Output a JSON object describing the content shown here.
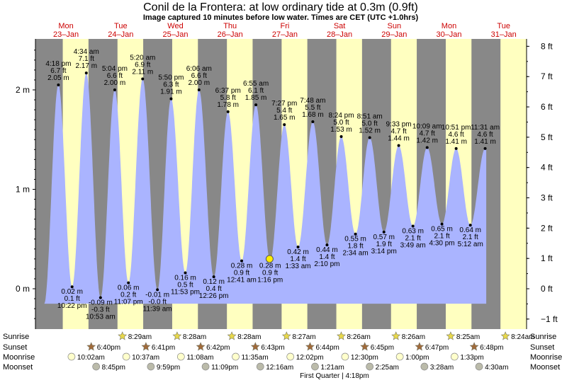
{
  "header": {
    "title": "Conil de la Frontera: at low  ordinary tide at 0.3m (0.9ft)",
    "subtitle": "Image captured 10 minutes before low water. Times are CET (UTC +1.0hrs)"
  },
  "days": [
    {
      "dow": "Mon",
      "date": "23–Jan"
    },
    {
      "dow": "Tue",
      "date": "24–Jan"
    },
    {
      "dow": "Wed",
      "date": "25–Jan"
    },
    {
      "dow": "Thu",
      "date": "26–Jan"
    },
    {
      "dow": "Fri",
      "date": "27–Jan"
    },
    {
      "dow": "Sat",
      "date": "28–Jan"
    },
    {
      "dow": "Sun",
      "date": "29–Jan"
    },
    {
      "dow": "Mon",
      "date": "30–Jan"
    },
    {
      "dow": "Tue",
      "date": "31–Jan"
    }
  ],
  "chart_data": {
    "type": "area",
    "title": "Conil de la Frontera: at low  ordinary tide at 0.3m (0.9ft)",
    "xlabel": "",
    "ylabel_left": "m",
    "ylabel_right": "ft",
    "ylim_m": [
      -0.32,
      2.48
    ],
    "left_ticks": [
      "2 m",
      "1 m",
      "0 m"
    ],
    "left_tick_values": [
      2,
      1,
      0
    ],
    "right_ticks": [
      "8 ft",
      "7 ft",
      "6 ft",
      "5 ft",
      "4 ft",
      "3 ft",
      "2 ft",
      "1 ft",
      "0 ft",
      "−1 ft"
    ],
    "right_tick_values": [
      8,
      7,
      6,
      5,
      4,
      3,
      2,
      1,
      0,
      -1
    ],
    "night_bands": [
      [
        -0.27,
        0.26
      ],
      [
        0.73,
        1.26
      ],
      [
        1.73,
        2.26
      ],
      [
        2.73,
        3.26
      ],
      [
        3.73,
        4.26
      ],
      [
        4.73,
        5.26
      ],
      [
        5.73,
        6.26
      ],
      [
        6.73,
        7.26
      ],
      [
        7.73,
        8.26
      ]
    ],
    "extremes": [
      {
        "t": 0.18,
        "h": 2.05,
        "type": "high",
        "time": "4:18 pm",
        "ft": "6.7 ft",
        "m": "2.05 m"
      },
      {
        "t": 0.43,
        "h": 0.02,
        "type": "low",
        "time": "10:22 pm",
        "ft": "0.1 ft",
        "m": "0.02 m"
      },
      {
        "t": 0.69,
        "h": 2.17,
        "type": "high",
        "time": "4:34 am",
        "ft": "7.1 ft",
        "m": "2.17 m"
      },
      {
        "t": 0.95,
        "h": -0.09,
        "type": "low",
        "time": "10:53 am",
        "ft": "-0.3 ft",
        "m": "-0.09 m"
      },
      {
        "t": 1.21,
        "h": 2.0,
        "type": "high",
        "time": "5:04 pm",
        "ft": "6.6 ft",
        "m": "2.00 m"
      },
      {
        "t": 1.46,
        "h": 0.06,
        "type": "low",
        "time": "11:07 pm",
        "ft": "0.2 ft",
        "m": "0.06 m"
      },
      {
        "t": 1.72,
        "h": 2.11,
        "type": "high",
        "time": "5:20 am",
        "ft": "6.9 ft",
        "m": "2.11 m"
      },
      {
        "t": 1.99,
        "h": -0.01,
        "type": "low",
        "time": "11:39 am",
        "ft": "-0.0 ft",
        "m": "-0.01 m"
      },
      {
        "t": 2.24,
        "h": 1.91,
        "type": "high",
        "time": "5:50 pm",
        "ft": "6.3 ft",
        "m": "1.91 m"
      },
      {
        "t": 2.5,
        "h": 0.16,
        "type": "low",
        "time": "11:53 pm",
        "ft": "0.5 ft",
        "m": "0.16 m"
      },
      {
        "t": 2.75,
        "h": 2.0,
        "type": "high",
        "time": "6:06 am",
        "ft": "6.6 ft",
        "m": "2.00 m"
      },
      {
        "t": 3.02,
        "h": 0.12,
        "type": "low",
        "time": "12:26 pm",
        "ft": "0.4 ft",
        "m": "0.12 m"
      },
      {
        "t": 3.28,
        "h": 1.78,
        "type": "high",
        "time": "6:37 pm",
        "ft": "5.8 ft",
        "m": "1.78 m"
      },
      {
        "t": 3.53,
        "h": 0.28,
        "type": "low",
        "time": "12:41 am",
        "ft": "0.9 ft",
        "m": "0.28 m"
      },
      {
        "t": 3.79,
        "h": 1.85,
        "type": "high",
        "time": "6:55 am",
        "ft": "6.1 ft",
        "m": "1.85 m"
      },
      {
        "t": 4.05,
        "h": 0.28,
        "type": "low",
        "time": "1:16 pm",
        "ft": "0.9 ft",
        "m": "0.28 m"
      },
      {
        "t": 4.31,
        "h": 1.65,
        "type": "high",
        "time": "7:27 pm",
        "ft": "5.4 ft",
        "m": "1.65 m"
      },
      {
        "t": 4.56,
        "h": 0.42,
        "type": "low",
        "time": "1:33 am",
        "ft": "1.4 ft",
        "m": "0.42 m"
      },
      {
        "t": 4.83,
        "h": 1.68,
        "type": "high",
        "time": "7:48 am",
        "ft": "5.5 ft",
        "m": "1.68 m"
      },
      {
        "t": 5.09,
        "h": 0.44,
        "type": "low",
        "time": "2:10 pm",
        "ft": "1.4 ft",
        "m": "0.44 m"
      },
      {
        "t": 5.35,
        "h": 1.53,
        "type": "high",
        "time": "8:24 pm",
        "ft": "5.0 ft",
        "m": "1.53 m"
      },
      {
        "t": 5.61,
        "h": 0.55,
        "type": "low",
        "time": "2:34 am",
        "ft": "1.8 ft",
        "m": "0.55 m"
      },
      {
        "t": 5.87,
        "h": 1.52,
        "type": "high",
        "time": "8:51 am",
        "ft": "5.0 ft",
        "m": "1.52 m"
      },
      {
        "t": 6.13,
        "h": 0.57,
        "type": "low",
        "time": "3:14 pm",
        "ft": "1.9 ft",
        "m": "0.57 m"
      },
      {
        "t": 6.4,
        "h": 1.44,
        "type": "high",
        "time": "9:33 pm",
        "ft": "4.7 ft",
        "m": "1.44 m"
      },
      {
        "t": 6.66,
        "h": 0.63,
        "type": "low",
        "time": "3:49 am",
        "ft": "2.1 ft",
        "m": "0.63 m"
      },
      {
        "t": 6.92,
        "h": 1.42,
        "type": "high",
        "time": "10:09 am",
        "ft": "4.7 ft",
        "m": "1.42 m"
      },
      {
        "t": 7.19,
        "h": 0.65,
        "type": "low",
        "time": "4:30 pm",
        "ft": "2.1 ft",
        "m": "0.65 m"
      },
      {
        "t": 7.45,
        "h": 1.41,
        "type": "high",
        "time": "10:51 pm",
        "ft": "4.6 ft",
        "m": "1.41 m"
      },
      {
        "t": 7.71,
        "h": 0.64,
        "type": "low",
        "time": "5:12 am",
        "ft": "2.1 ft",
        "m": "0.64 m"
      },
      {
        "t": 7.98,
        "h": 1.41,
        "type": "high",
        "time": "11:31 am",
        "ft": "4.6 ft",
        "m": "1.41 m"
      }
    ],
    "current_marker": {
      "t": 4.04,
      "h": 0.3
    }
  },
  "rows": {
    "labels": [
      "Sunrise",
      "Sunset",
      "Moonrise",
      "Moonset"
    ],
    "sunrise": [
      "8:29am",
      "8:28am",
      "8:28am",
      "8:27am",
      "8:26am",
      "8:26am",
      "8:25am",
      "8:24am"
    ],
    "sunset": [
      "6:40pm",
      "6:41pm",
      "6:42pm",
      "6:43pm",
      "6:44pm",
      "6:45pm",
      "6:47pm",
      "6:48pm"
    ],
    "moonrise": [
      "10:02am",
      "10:37am",
      "11:08am",
      "11:35am",
      "12:02pm",
      "12:30pm",
      "1:00pm",
      "1:33pm"
    ],
    "moonset": [
      "8:45pm",
      "9:59pm",
      "11:09pm",
      "12:16am",
      "1:21am",
      "2:25am",
      "3:28am",
      "4:30am"
    ],
    "moon_phase": "First Quarter | 4:18pm"
  },
  "colors": {
    "day_band": "#ffffc0",
    "night_band": "#888888",
    "water": "#aab4ff",
    "day_label": "#cc0000",
    "sun_star": "#e8d84a",
    "sunset_star": "#a06a3a",
    "moonrise_dot": "#ffffcc",
    "moonset_dot": "#bbbbaa"
  }
}
